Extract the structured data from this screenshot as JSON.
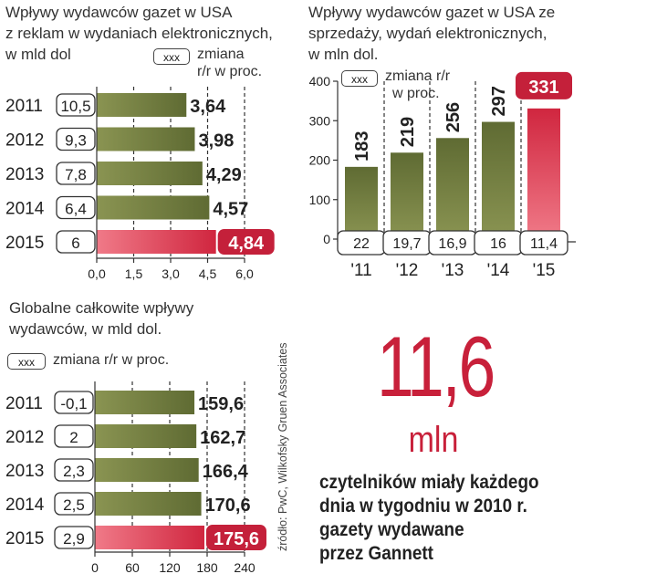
{
  "colors": {
    "bar_dark": "#5f6b33",
    "bar_dark_light": "#8a9452",
    "bar_red": "#d0263f",
    "bar_red_light": "#f07a88",
    "badge_red": "#c4203a",
    "highlight_number": "#c8203a",
    "text": "#222222",
    "axis_grey": "#555555"
  },
  "chart_data": [
    {
      "id": "ads",
      "type": "bar",
      "orientation": "horizontal",
      "title": "Wpływy wydawców gazet w USA z reklam w wydaniach elektronicznych, w mld dol",
      "title_lines": [
        "Wpływy wydawców gazet w USA",
        "z reklam w wydaniach elektronicznych,",
        "w mld dol"
      ],
      "legend": {
        "box": "xxx",
        "label_lines": [
          "zmiana",
          "r/r w proc."
        ]
      },
      "categories": [
        "2011",
        "2012",
        "2013",
        "2014",
        "2015"
      ],
      "values": [
        3.64,
        3.98,
        4.29,
        4.57,
        4.84
      ],
      "value_labels": [
        "3,64",
        "3,98",
        "4,29",
        "4,57",
        "4,84"
      ],
      "change_labels": [
        "10,5",
        "9,3",
        "7,8",
        "6,4",
        "6"
      ],
      "highlight": "2015",
      "xlim": [
        0,
        6
      ],
      "ticks": [
        0,
        1.5,
        3,
        4.5,
        6
      ],
      "tick_labels": [
        "0,0",
        "1,5",
        "3,0",
        "4,5",
        "6,0"
      ]
    },
    {
      "id": "sales",
      "type": "bar",
      "orientation": "vertical",
      "title": "Wpływy wydawców gazet w USA ze sprzedaży, wydań elektronicznych, w mln dol.",
      "title_lines": [
        "Wpływy wydawców gazet w USA ze",
        "sprzedaży, wydań elektronicznych,",
        "w mln dol."
      ],
      "legend": {
        "box": "xxx",
        "label_lines": [
          "zmiana r/r",
          "w proc."
        ]
      },
      "categories": [
        "'11",
        "'12",
        "'13",
        "'14",
        "'15"
      ],
      "values": [
        183,
        219,
        256,
        297,
        331
      ],
      "value_labels": [
        "183",
        "219",
        "256",
        "297",
        "331"
      ],
      "change_labels": [
        "22",
        "19,7",
        "16,9",
        "16",
        "11,4"
      ],
      "highlight": "'15",
      "ylim": [
        0,
        400
      ],
      "ticks": [
        0,
        100,
        200,
        300,
        400
      ],
      "tick_labels": [
        "0",
        "100",
        "200",
        "300",
        "400"
      ]
    },
    {
      "id": "global",
      "type": "bar",
      "orientation": "horizontal",
      "title": "Globalne całkowite wpływy wydawców, w mld dol.",
      "title_lines": [
        "Globalne całkowite wpływy",
        "wydawców, w mld dol."
      ],
      "legend": {
        "box": "xxx",
        "label_lines": [
          "zmiana r/r w proc."
        ]
      },
      "categories": [
        "2011",
        "2012",
        "2013",
        "2014",
        "2015"
      ],
      "values": [
        159.6,
        162.7,
        166.4,
        170.6,
        175.6
      ],
      "value_labels": [
        "159,6",
        "162,7",
        "166,4",
        "170,6",
        "175,6"
      ],
      "change_labels": [
        "-0,1",
        "2",
        "2,3",
        "2,5",
        "2,9"
      ],
      "highlight": "2015",
      "xlim": [
        0,
        240
      ],
      "ticks": [
        0,
        60,
        120,
        180,
        240
      ],
      "tick_labels": [
        "0",
        "60",
        "120",
        "180",
        "240"
      ]
    }
  ],
  "source": "źródło: PwC, Wilkofsky Gruen Associates",
  "highlight_stat": {
    "number": "11,6",
    "unit": "mln",
    "description_lines": [
      "czytelników miały każdego",
      "dnia w tygodniu w 2010 r.",
      "gazety wydawane",
      "przez Gannett"
    ]
  }
}
